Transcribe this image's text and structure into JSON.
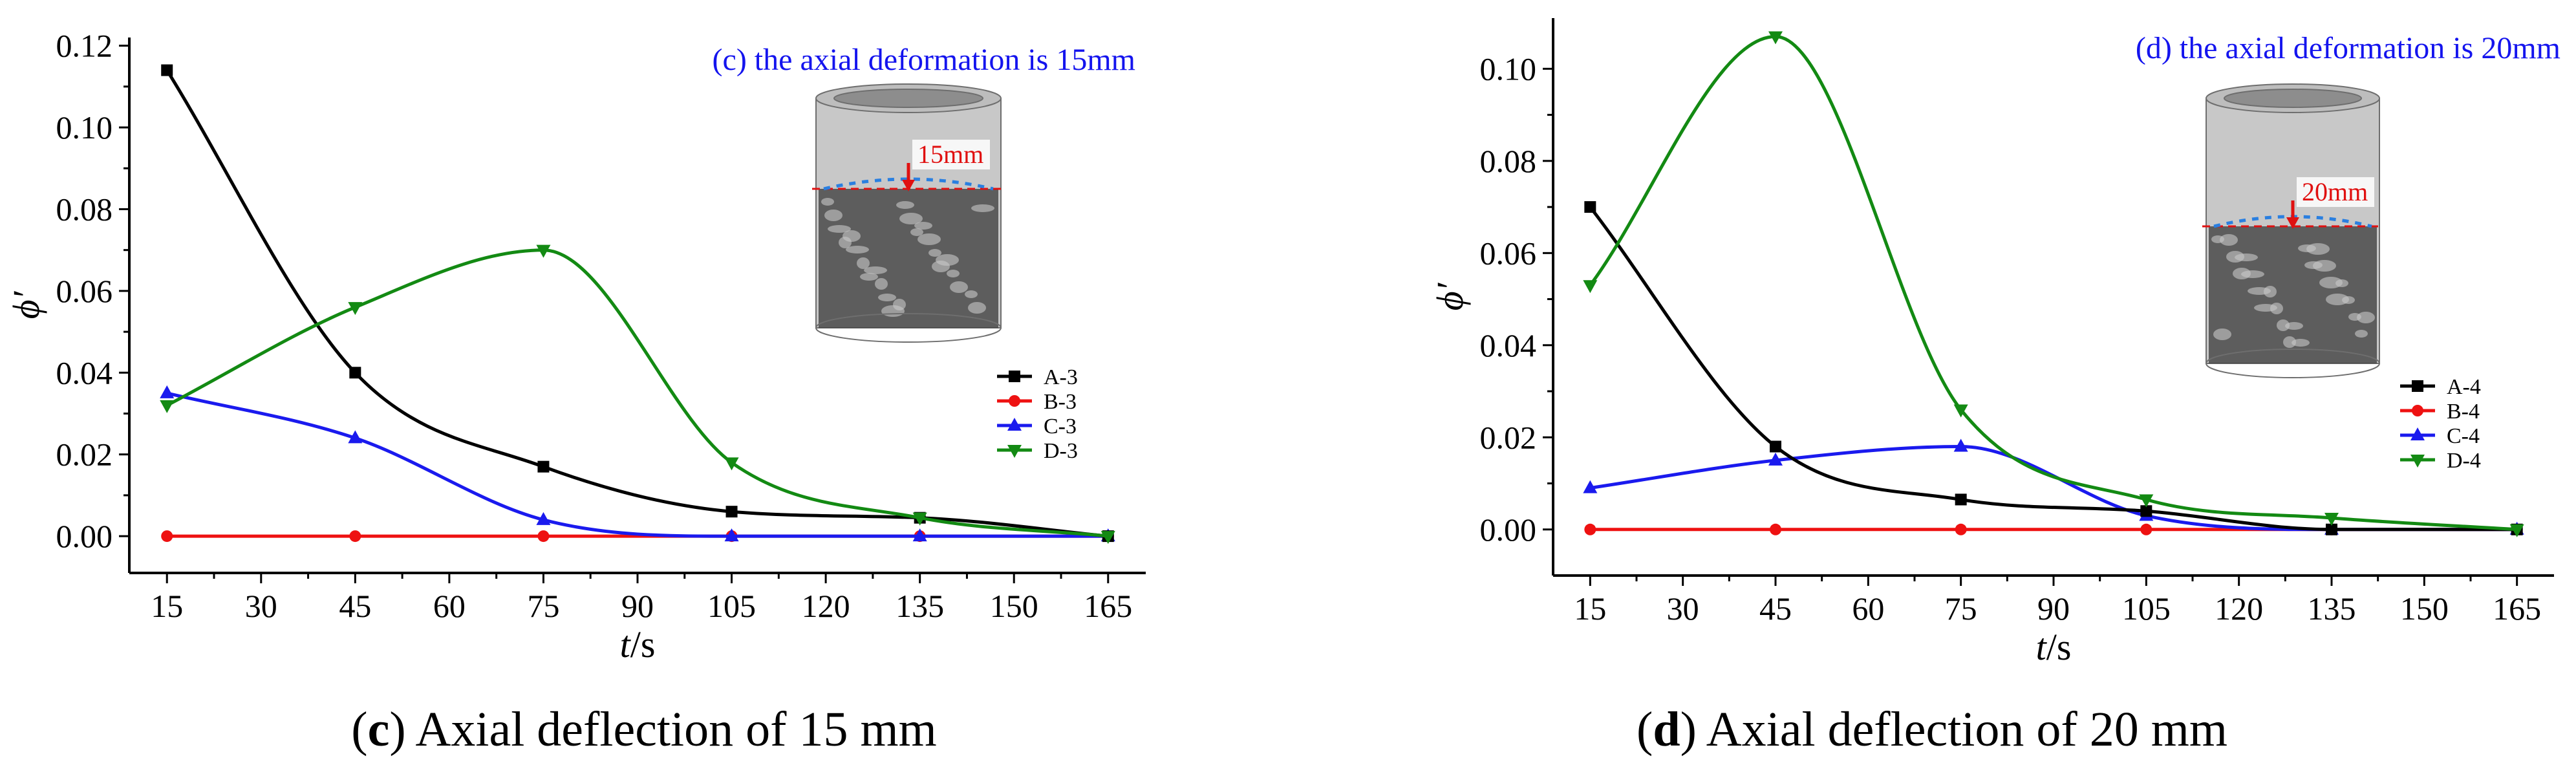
{
  "colors": {
    "A": "#000000",
    "B": "#ee1111",
    "C": "#1a1aee",
    "D": "#138a13",
    "title": "#1414ee",
    "inset_arrow": "#e01010"
  },
  "charts": [
    {
      "id": "c",
      "panel_title": "(c) the axial deformation is 15mm",
      "caption": {
        "prefix": "(",
        "letter": "c",
        "suffix": ") Axial deflection of 15 mm"
      },
      "inset_label": "15mm"
    },
    {
      "id": "d",
      "panel_title": "(d) the axial deformation is 20mm",
      "caption": {
        "prefix": "(",
        "letter": "d",
        "suffix": ") Axial deflection of 20 mm"
      },
      "inset_label": "20mm"
    }
  ],
  "chart_data": [
    {
      "type": "line",
      "title": "(c) the axial deformation is 15mm",
      "xlabel_italic": "t",
      "xlabel_unit": "/s",
      "ylabel": "ϕ′",
      "x": [
        15,
        45,
        75,
        105,
        135,
        165
      ],
      "xlim": [
        9,
        171
      ],
      "ylim": [
        -0.009,
        0.122
      ],
      "xticks": [
        15,
        30,
        45,
        60,
        75,
        90,
        105,
        120,
        135,
        150,
        165
      ],
      "yticks": [
        "0.00",
        "0.02",
        "0.04",
        "0.06",
        "0.08",
        "0.10",
        "0.12"
      ],
      "legend_position": "right-center",
      "series": [
        {
          "name": "A-3",
          "marker": "square",
          "values": [
            0.114,
            0.04,
            0.017,
            0.006,
            0.0045,
            0.0
          ]
        },
        {
          "name": "B-3",
          "marker": "circle",
          "values": [
            0.0,
            0.0,
            0.0,
            0.0,
            0.0,
            0.0
          ]
        },
        {
          "name": "C-3",
          "marker": "triangle-up",
          "values": [
            0.035,
            0.024,
            0.004,
            0.0,
            0.0,
            0.0
          ]
        },
        {
          "name": "D-3",
          "marker": "triangle-down",
          "values": [
            0.032,
            0.056,
            0.07,
            0.018,
            0.0045,
            0.0
          ]
        }
      ]
    },
    {
      "type": "line",
      "title": "(d) the axial deformation is 20mm",
      "xlabel_italic": "t",
      "xlabel_unit": "/s",
      "ylabel": "ϕ′",
      "x": [
        15,
        45,
        75,
        105,
        135,
        165
      ],
      "xlim": [
        9,
        171
      ],
      "ylim": [
        -0.01,
        0.111
      ],
      "xticks": [
        15,
        30,
        45,
        60,
        75,
        90,
        105,
        120,
        135,
        150,
        165
      ],
      "yticks": [
        "0.00",
        "0.02",
        "0.04",
        "0.06",
        "0.08",
        "0.10"
      ],
      "legend_position": "bottom-right",
      "series": [
        {
          "name": "A-4",
          "marker": "square",
          "values": [
            0.07,
            0.018,
            0.0065,
            0.004,
            0.0,
            0.0
          ]
        },
        {
          "name": "B-4",
          "marker": "circle",
          "values": [
            0.0,
            0.0,
            0.0,
            0.0,
            0.0,
            0.0
          ]
        },
        {
          "name": "C-4",
          "marker": "triangle-up",
          "values": [
            0.009,
            0.015,
            0.018,
            0.003,
            0.0,
            0.0
          ]
        },
        {
          "name": "D-4",
          "marker": "triangle-down",
          "values": [
            0.053,
            0.107,
            0.026,
            0.0065,
            0.0025,
            0.0
          ]
        }
      ]
    }
  ]
}
